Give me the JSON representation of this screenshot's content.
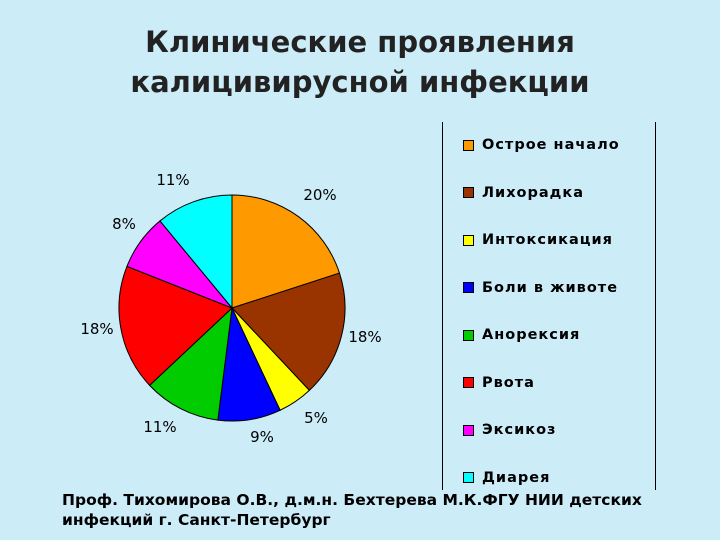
{
  "slide": {
    "title_line1": "Клинические проявления",
    "title_line2": "калицивирусной инфекции",
    "footer_line1": "Проф. Тихомирова О.В., д.м.н. Бехтерева М.К.ФГУ НИИ детских",
    "footer_line2": "инфекций г. Санкт-Петербург"
  },
  "chart_data": {
    "type": "pie",
    "title": "",
    "legend_position": "right",
    "categories": [
      "Острое начало",
      "Лихорадка",
      "Интоксикация",
      "Боли в животе",
      "Анорексия",
      "Рвота",
      "Эксикоз",
      "Диарея"
    ],
    "values": [
      20,
      18,
      5,
      9,
      11,
      18,
      8,
      11
    ],
    "labels": [
      "20%",
      "18%",
      "5%",
      "9%",
      "11%",
      "18%",
      "8%",
      "11%"
    ],
    "colors": [
      "#ff9900",
      "#993300",
      "#ffff00",
      "#0000ff",
      "#00cc00",
      "#ff0000",
      "#ff00ff",
      "#00ffff"
    ],
    "start_angle_deg": 0,
    "direction": "clockwise"
  }
}
